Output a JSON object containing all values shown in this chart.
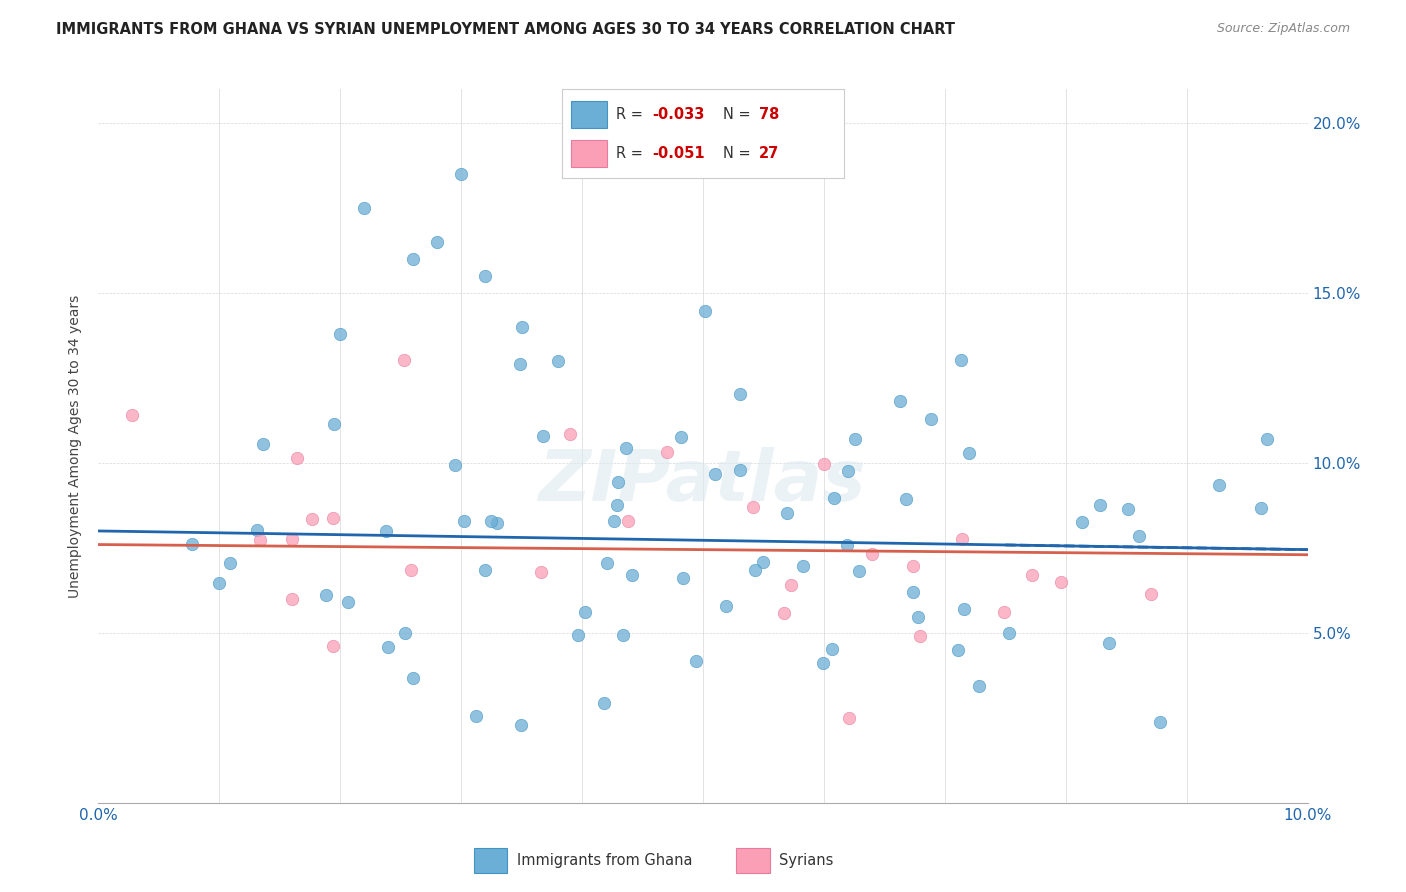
{
  "title": "IMMIGRANTS FROM GHANA VS SYRIAN UNEMPLOYMENT AMONG AGES 30 TO 34 YEARS CORRELATION CHART",
  "source": "Source: ZipAtlas.com",
  "ylabel": "Unemployment Among Ages 30 to 34 years",
  "color_ghana": "#6baed6",
  "color_syria": "#fa9fb5",
  "color_ghana_edge": "#4393c3",
  "color_syria_edge": "#e87ca0",
  "trend_ghana_color": "#2166ac",
  "trend_syria_color": "#d6604d",
  "r_ghana": "-0.033",
  "n_ghana": "78",
  "r_syria": "-0.051",
  "n_syria": "27",
  "xmin": 0.0,
  "xmax": 0.1,
  "ymin": 0.0,
  "ymax": 0.21,
  "ytick_vals": [
    0.05,
    0.1,
    0.15,
    0.2
  ],
  "ytick_labels": [
    "5.0%",
    "10.0%",
    "15.0%",
    "20.0%"
  ],
  "trend_ghana_y0": 0.08,
  "trend_ghana_y1": 0.0745,
  "trend_syria_y0": 0.076,
  "trend_syria_y1": 0.073,
  "watermark": "ZIPatlas"
}
